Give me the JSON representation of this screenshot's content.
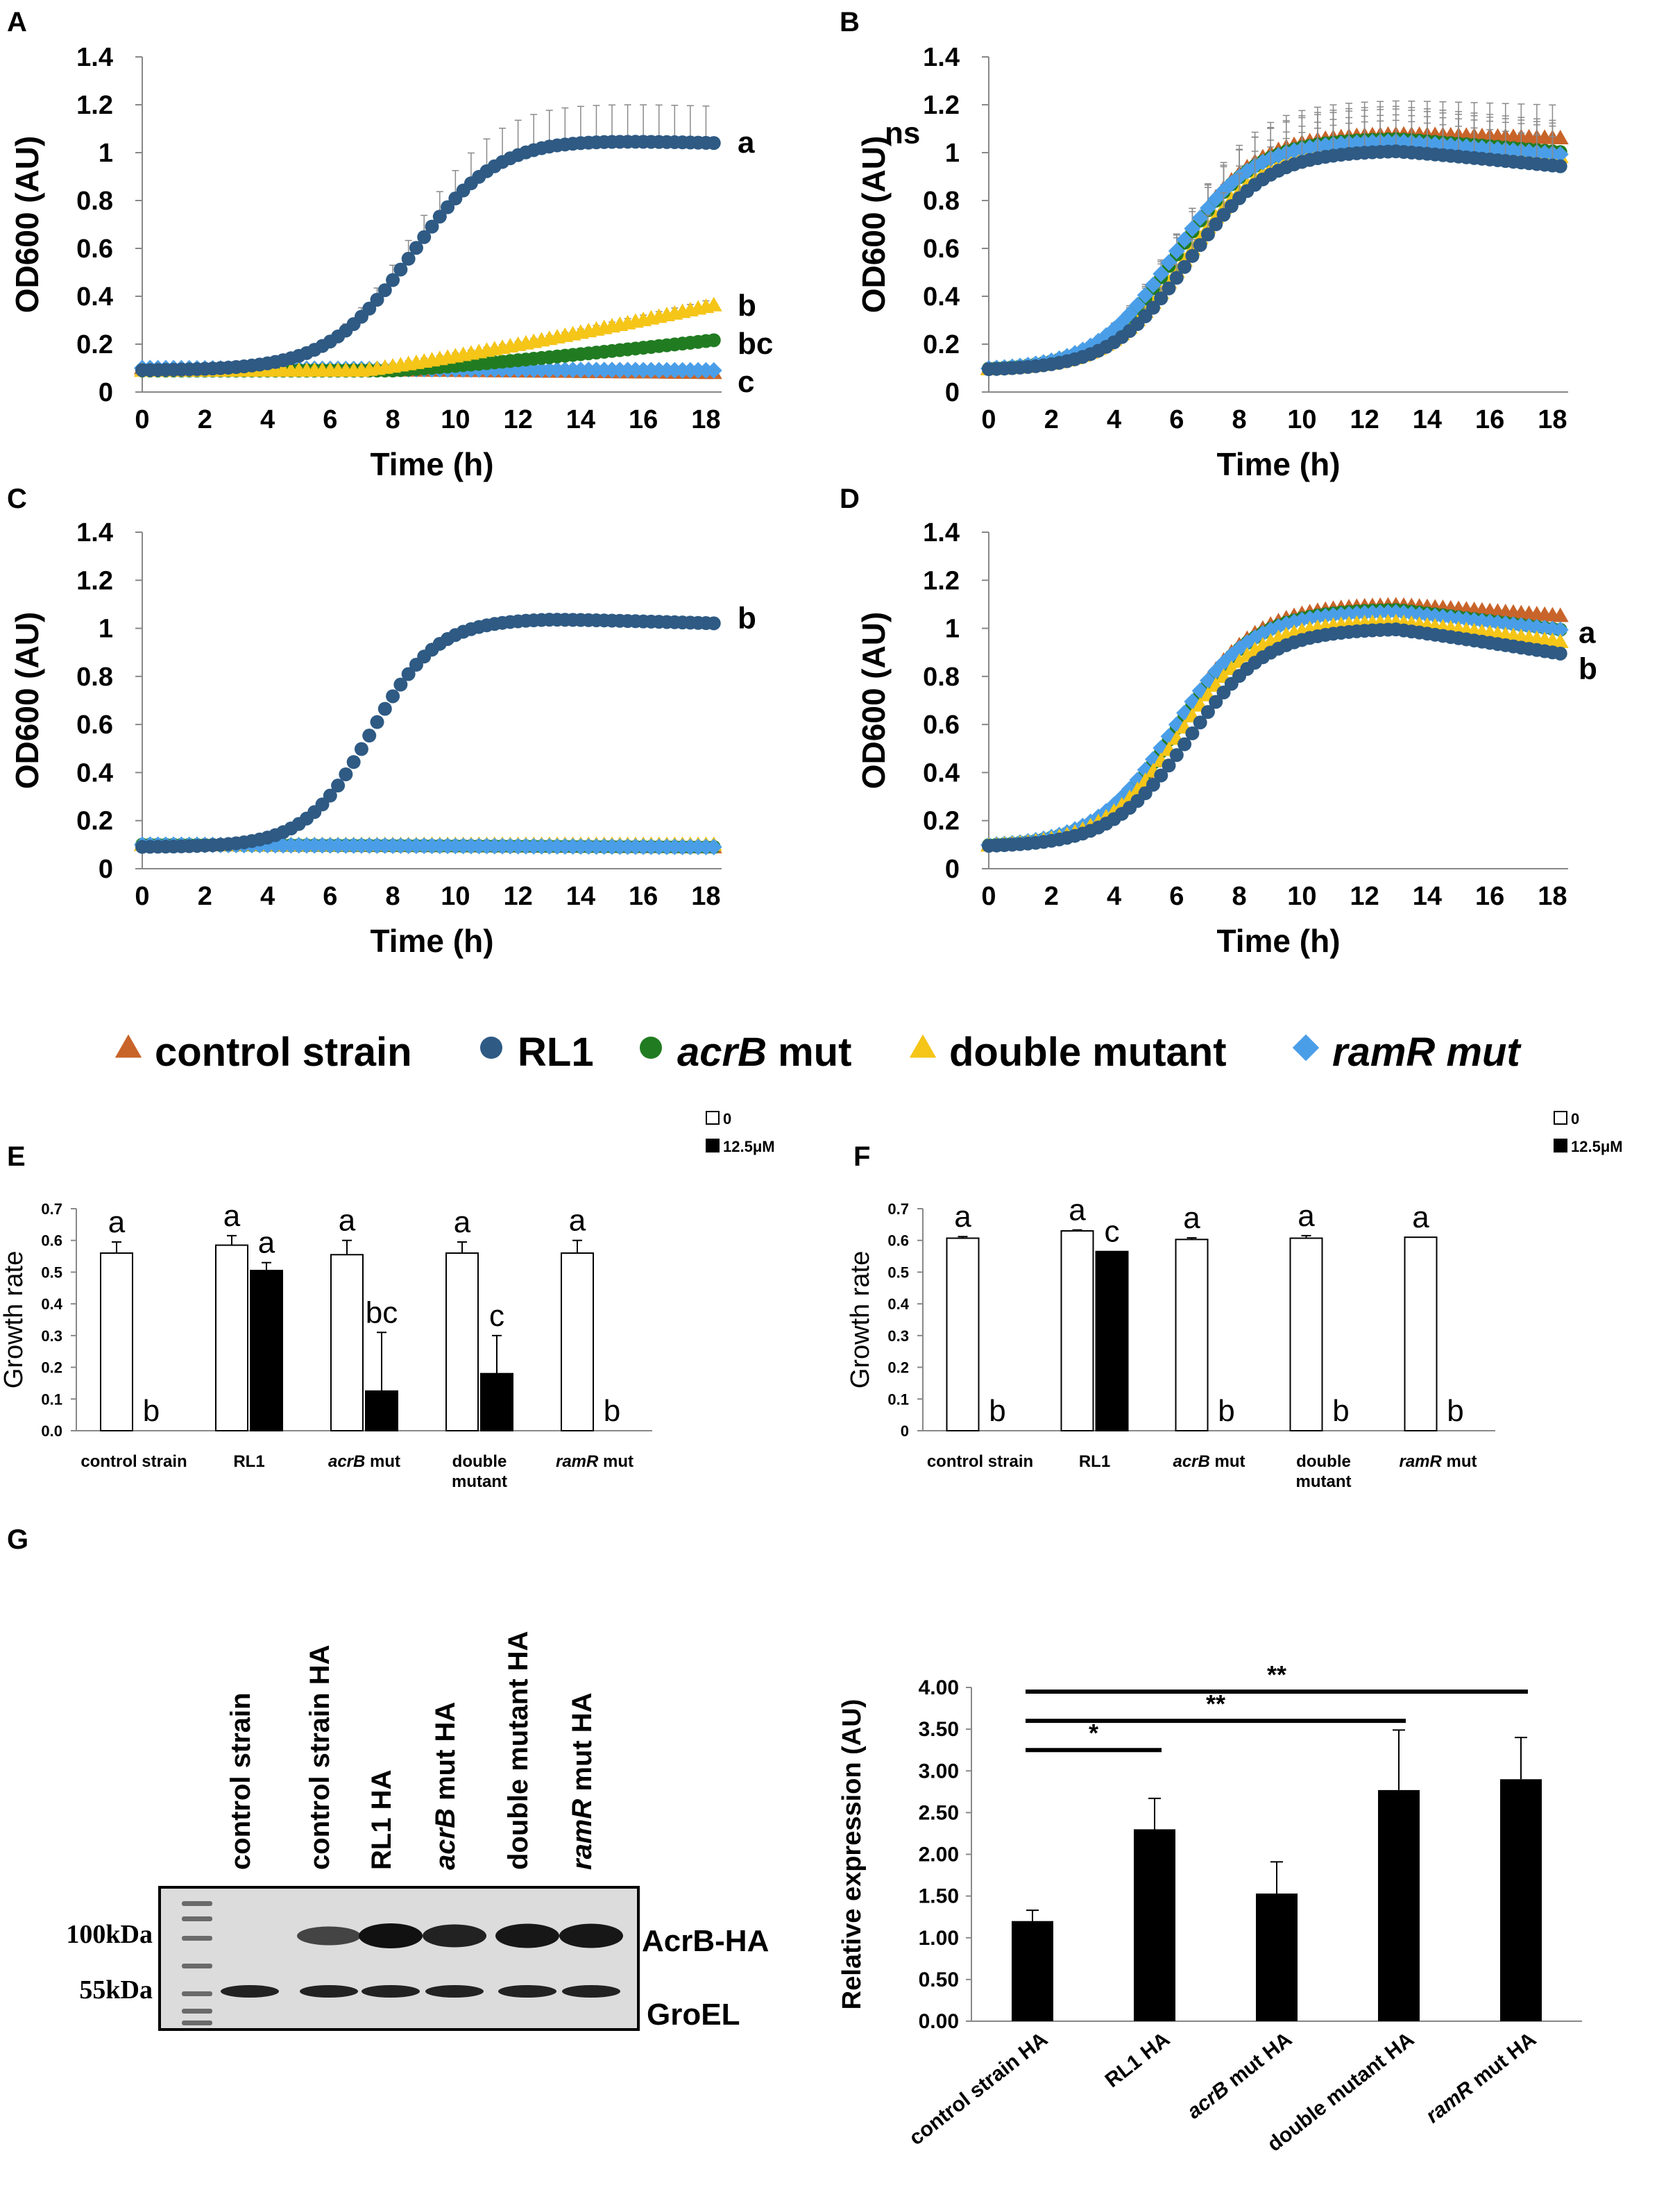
{
  "colors": {
    "control": "#c8642a",
    "rl1": "#2e5a84",
    "acrb": "#217c21",
    "double": "#f5c518",
    "ramr": "#4a9ee8",
    "error": "#8a8a8a",
    "bar_dark": "#000000",
    "bar_light": "#ffffff"
  },
  "legend": {
    "control": "control strain",
    "rl1": "RL1",
    "acrb_em": "acrB",
    "acrb_rest": " mut",
    "double": "double mutant",
    "ramr": "ramR mut"
  },
  "western": {
    "panel_label": "G",
    "lanes": [
      "control strain",
      "control strain HA",
      "RL1 HA",
      "acrB mut HA",
      "double mutant HA",
      "ramR mut HA"
    ],
    "marker_100": "100kDa",
    "marker_55": "55kDa",
    "band_acrb": "AcrB-HA",
    "band_groel": "GroEL"
  },
  "chart_data": [
    {
      "panel": "A",
      "type": "line",
      "xlabel": "Time (h)",
      "ylabel": "OD600 (AU)",
      "xlim": [
        0,
        18.5
      ],
      "ylim": [
        0,
        1.4
      ],
      "xticks": [
        "0",
        "2",
        "4",
        "6",
        "8",
        "10",
        "12",
        "14",
        "16",
        "18"
      ],
      "yticks": [
        "0",
        "0.2",
        "0.4",
        "0.6",
        "0.8",
        "1",
        "1.2",
        "1.4"
      ],
      "series": [
        {
          "name": "control strain",
          "key": "control",
          "marker": "triangle",
          "shape": "flat",
          "start": 0.1,
          "end": 0.08,
          "err": 0
        },
        {
          "name": "ramR mut",
          "key": "ramr",
          "marker": "diamond",
          "shape": "flat",
          "start": 0.1,
          "end": 0.09,
          "err": 0
        },
        {
          "name": "acrB mut",
          "key": "acrb",
          "marker": "circle",
          "shape": "slow",
          "start": 0.09,
          "end": 0.22,
          "onset": 8,
          "err": 0.04
        },
        {
          "name": "double mutant",
          "key": "double",
          "marker": "triangle",
          "shape": "slow",
          "start": 0.09,
          "end": 0.37,
          "onset": 7,
          "err": 0.09
        },
        {
          "name": "RL1",
          "key": "rl1",
          "marker": "circle",
          "shape": "sigmoid",
          "start": 0.09,
          "plateau": 1.06,
          "mid": 8.6,
          "steep": 0.75,
          "decline": 0.02,
          "err": 0.16
        }
      ],
      "annotations": [
        "a",
        "b",
        "bc",
        "c"
      ],
      "annotation_y": [
        1.04,
        0.36,
        0.2,
        0.04
      ]
    },
    {
      "panel": "B",
      "type": "line",
      "xlabel": "Time (h)",
      "ylabel": "OD600 (AU)",
      "xlim": [
        0,
        18.5
      ],
      "ylim": [
        0,
        1.4
      ],
      "xticks": [
        "0",
        "2",
        "4",
        "6",
        "8",
        "10",
        "12",
        "14",
        "16",
        "18"
      ],
      "yticks": [
        "0",
        "0.2",
        "0.4",
        "0.6",
        "0.8",
        "1",
        "1.2",
        "1.4"
      ],
      "series": [
        {
          "name": "control strain",
          "key": "control",
          "marker": "triangle",
          "shape": "sigmoid",
          "start": 0.09,
          "plateau": 1.08,
          "mid": 6.0,
          "steep": 0.8,
          "decline": 0.02,
          "err": 0.14
        },
        {
          "name": "double mutant",
          "key": "double",
          "marker": "triangle",
          "shape": "sigmoid",
          "start": 0.09,
          "plateau": 1.03,
          "mid": 6.3,
          "steep": 0.8,
          "decline": 0.05,
          "err": 0.14
        },
        {
          "name": "acrB mut",
          "key": "acrb",
          "marker": "circle",
          "shape": "sigmoid",
          "start": 0.09,
          "plateau": 1.06,
          "mid": 6.0,
          "steep": 0.8,
          "decline": 0.06,
          "err": 0.14
        },
        {
          "name": "ramR mut",
          "key": "ramr",
          "marker": "diamond",
          "shape": "sigmoid",
          "start": 0.09,
          "plateau": 1.05,
          "mid": 5.9,
          "steep": 0.8,
          "decline": 0.06,
          "err": 0.14
        },
        {
          "name": "RL1",
          "key": "rl1",
          "marker": "circle",
          "shape": "sigmoid",
          "start": 0.09,
          "plateau": 1.01,
          "mid": 6.4,
          "steep": 0.8,
          "decline": 0.07,
          "err": 0.14
        }
      ],
      "annotations": [
        "ns"
      ],
      "annotation_y": [
        1.08
      ]
    },
    {
      "panel": "C",
      "type": "line",
      "xlabel": "Time (h)",
      "ylabel": "OD600 (AU)",
      "xlim": [
        0,
        18.5
      ],
      "ylim": [
        0,
        1.4
      ],
      "xticks": [
        "0",
        "2",
        "4",
        "6",
        "8",
        "10",
        "12",
        "14",
        "16",
        "18"
      ],
      "yticks": [
        "0",
        "0.2",
        "0.4",
        "0.6",
        "0.8",
        "1",
        "1.2",
        "1.4"
      ],
      "series": [
        {
          "name": "control strain",
          "key": "control",
          "marker": "triangle",
          "shape": "flat",
          "start": 0.1,
          "end": 0.09,
          "err": 0
        },
        {
          "name": "acrB mut",
          "key": "acrb",
          "marker": "circle",
          "shape": "flat",
          "start": 0.1,
          "end": 0.09,
          "err": 0
        },
        {
          "name": "double mutant",
          "key": "double",
          "marker": "triangle",
          "shape": "flat",
          "start": 0.1,
          "end": 0.1,
          "err": 0
        },
        {
          "name": "ramR mut",
          "key": "ramr",
          "marker": "diamond",
          "shape": "flat",
          "start": 0.1,
          "end": 0.09,
          "err": 0
        },
        {
          "name": "RL1",
          "key": "rl1",
          "marker": "circle",
          "shape": "sigmoid",
          "start": 0.09,
          "plateau": 1.04,
          "mid": 7.3,
          "steep": 0.95,
          "decline": 0.02,
          "err": 0
        }
      ],
      "annotations": [
        "b"
      ],
      "annotation_y": [
        1.04
      ]
    },
    {
      "panel": "D",
      "type": "line",
      "xlabel": "Time (h)",
      "ylabel": "OD600 (AU)",
      "xlim": [
        0,
        18.5
      ],
      "ylim": [
        0,
        1.4
      ],
      "xticks": [
        "0",
        "2",
        "4",
        "6",
        "8",
        "10",
        "12",
        "14",
        "16",
        "18"
      ],
      "yticks": [
        "0",
        "0.2",
        "0.4",
        "0.6",
        "0.8",
        "1",
        "1.2",
        "1.4"
      ],
      "series": [
        {
          "name": "control strain",
          "key": "control",
          "marker": "triangle",
          "shape": "sigmoid",
          "start": 0.09,
          "plateau": 1.1,
          "mid": 6.0,
          "steep": 0.8,
          "decline": 0.05,
          "err": 0.01
        },
        {
          "name": "acrB mut",
          "key": "acrb",
          "marker": "circle",
          "shape": "sigmoid",
          "start": 0.09,
          "plateau": 1.08,
          "mid": 6.0,
          "steep": 0.8,
          "decline": 0.09,
          "err": 0.01
        },
        {
          "name": "ramR mut",
          "key": "ramr",
          "marker": "diamond",
          "shape": "sigmoid",
          "start": 0.09,
          "plateau": 1.07,
          "mid": 5.9,
          "steep": 0.8,
          "decline": 0.08,
          "err": 0.01
        },
        {
          "name": "double mutant",
          "key": "double",
          "marker": "triangle",
          "shape": "sigmoid",
          "start": 0.09,
          "plateau": 1.03,
          "mid": 6.1,
          "steep": 0.8,
          "decline": 0.09,
          "err": 0.01
        },
        {
          "name": "RL1",
          "key": "rl1",
          "marker": "circle",
          "shape": "sigmoid",
          "start": 0.09,
          "plateau": 1.0,
          "mid": 6.4,
          "steep": 0.8,
          "decline": 0.11,
          "err": 0.01
        }
      ],
      "annotations": [
        "a",
        "b"
      ],
      "annotation_y": [
        0.98,
        0.83
      ]
    },
    {
      "panel": "E",
      "type": "bar",
      "ylabel": "Growth rate",
      "ylim": [
        0,
        0.7
      ],
      "yticks": [
        "0.0",
        "0.1",
        "0.2",
        "0.3",
        "0.4",
        "0.5",
        "0.6",
        "0.7"
      ],
      "categories": [
        "control strain",
        "RL1",
        "acrB mut",
        "double mutant",
        "ramR mut"
      ],
      "category_italic": [
        "",
        "",
        "acrB",
        "",
        "ramR"
      ],
      "series": [
        {
          "name": "0",
          "key": "bar_light",
          "values": [
            0.56,
            0.585,
            0.555,
            0.56,
            0.56
          ],
          "errors": [
            0.035,
            0.03,
            0.045,
            0.035,
            0.04
          ],
          "letters": [
            "a",
            "a",
            "a",
            "a",
            "a"
          ]
        },
        {
          "name": "12.5μM",
          "key": "bar_dark",
          "values": [
            0,
            0.505,
            0.125,
            0.18,
            0
          ],
          "errors": [
            0,
            0.025,
            0.185,
            0.12,
            0
          ],
          "letters": [
            "b",
            "a",
            "bc",
            "c",
            "b"
          ]
        }
      ]
    },
    {
      "panel": "F",
      "type": "bar",
      "ylabel": "Growth rate",
      "ylim": [
        0,
        0.7
      ],
      "yticks": [
        "0",
        "0.1",
        "0.2",
        "0.3",
        "0.4",
        "0.5",
        "0.6",
        "0.7"
      ],
      "categories": [
        "control strain",
        "RL1",
        "acrB mut",
        "double mutant",
        "ramR mut"
      ],
      "category_italic": [
        "",
        "",
        "acrB",
        "",
        "ramR"
      ],
      "series": [
        {
          "name": "0",
          "key": "bar_light",
          "values": [
            0.607,
            0.63,
            0.603,
            0.607,
            0.61
          ],
          "errors": [
            0.005,
            0.003,
            0.005,
            0.008,
            0.0
          ],
          "letters": [
            "a",
            "a",
            "a",
            "a",
            "a"
          ]
        },
        {
          "name": "12.5μM",
          "key": "bar_dark",
          "values": [
            0,
            0.565,
            0,
            0,
            0
          ],
          "errors": [
            0,
            0,
            0,
            0,
            0
          ],
          "letters": [
            "b",
            "c",
            "b",
            "b",
            "b"
          ]
        }
      ]
    },
    {
      "panel": "G-quant",
      "type": "bar",
      "ylabel": "Relative expression (AU)",
      "ylim": [
        0,
        4.0
      ],
      "yticks": [
        "0.00",
        "0.50",
        "1.00",
        "1.50",
        "2.00",
        "2.50",
        "3.00",
        "3.50",
        "4.00"
      ],
      "categories": [
        "control strain HA",
        "RL1 HA",
        "acrB mut HA",
        "double mutant HA",
        "ramR mut HA"
      ],
      "category_italic": [
        "",
        "",
        "acrB",
        "",
        "ramR"
      ],
      "values": [
        1.2,
        2.3,
        1.53,
        2.77,
        2.9
      ],
      "errors": [
        0.13,
        0.37,
        0.38,
        0.72,
        0.5
      ],
      "significance": [
        {
          "from": 0,
          "to": 1,
          "label": "*",
          "level": 3.25
        },
        {
          "from": 0,
          "to": 3,
          "label": "**",
          "level": 3.6
        },
        {
          "from": 0,
          "to": 4,
          "label": "**",
          "level": 3.95
        }
      ]
    }
  ]
}
